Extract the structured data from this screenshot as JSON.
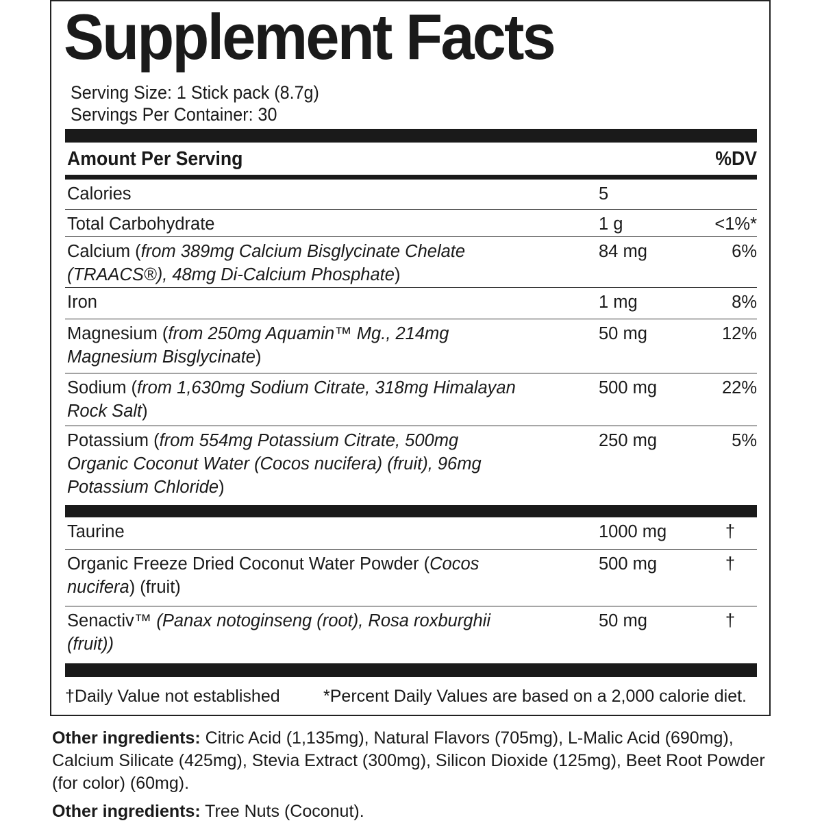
{
  "title": "Supplement Facts",
  "serving_size": "Serving Size: 1 Stick pack (8.7g)",
  "servings_per_container": "Servings Per Container: 30",
  "header": {
    "amount": "Amount Per Serving",
    "dv": "%DV"
  },
  "rows": [
    {
      "name": "Calories",
      "detail": "",
      "suffix": "",
      "amount": "5",
      "dv": ""
    },
    {
      "name": "Total Carbohydrate",
      "detail": "",
      "suffix": "",
      "amount": "1 g",
      "dv": "<1%*"
    },
    {
      "name": "Calcium (",
      "detail": "from 389mg Calcium Bisglycinate Chelate (TRAACS®), 48mg Di-Calcium Phosphate",
      "suffix": ")",
      "amount": "84 mg",
      "dv": "6%"
    },
    {
      "name": "Iron",
      "detail": "",
      "suffix": "",
      "amount": "1 mg",
      "dv": "8%"
    },
    {
      "name": "Magnesium (",
      "detail": "from 250mg Aquamin™ Mg., 214mg Magnesium Bisglycinate",
      "suffix": ")",
      "amount": "50 mg",
      "dv": "12%"
    },
    {
      "name": "Sodium (",
      "detail": "from 1,630mg Sodium Citrate, 318mg Himalayan Rock Salt",
      "suffix": ")",
      "amount": "500 mg",
      "dv": "22%"
    },
    {
      "name": "Potassium (",
      "detail": "from 554mg Potassium Citrate, 500mg Organic Coconut Water (Cocos nucifera) (fruit), 96mg Potassium Chloride",
      "suffix": ")",
      "amount": "250 mg",
      "dv": "5%"
    },
    {
      "name": "Taurine",
      "detail": "",
      "suffix": "",
      "amount": "1000 mg",
      "dv": "†"
    },
    {
      "name": "Organic Freeze Dried Coconut Water Powder (",
      "detail": "Cocos nucifera",
      "suffix": ") (fruit)",
      "amount": "500 mg",
      "dv": "†"
    },
    {
      "name": "Senactiv™ ",
      "detail": "(Panax notoginseng (root), Rosa roxburghii (fruit))",
      "suffix": "",
      "amount": "50 mg",
      "dv": "†"
    }
  ],
  "footnotes": {
    "dagger": "†Daily Value not established",
    "percent": "*Percent Daily Values are based on a 2,000 calorie diet."
  },
  "other_ingredients": {
    "label": "Other ingredients:",
    "text": " Citric Acid (1,135mg), Natural Flavors (705mg), L-Malic Acid (690mg), Calcium Silicate (425mg), Stevia Extract (300mg), Silicon Dioxide (125mg), Beet Root Powder (for color) (60mg)."
  },
  "allergens": {
    "label": "Other ingredients:",
    "text": " Tree Nuts (Coconut)."
  }
}
